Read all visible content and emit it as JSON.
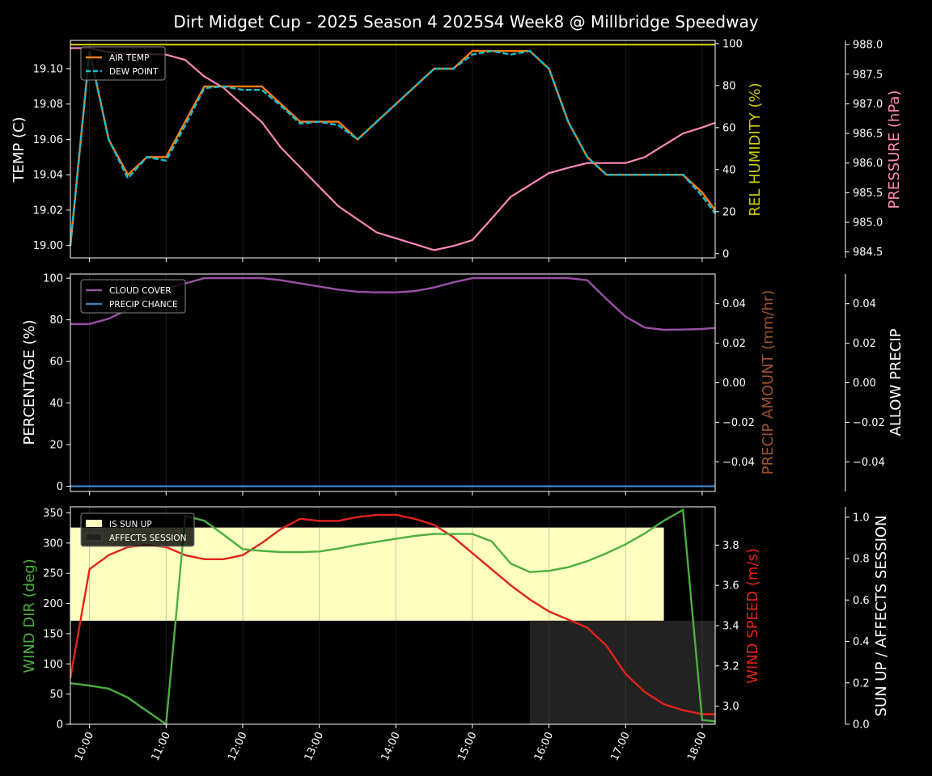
{
  "title": "Dirt Midget Cup - 2025 Season 4 2025S4 Week8 @ Millbridge Speedway",
  "colors": {
    "air_temp": "#ff7f0e",
    "dew_point": "#17becf",
    "humidity": "#cccc00",
    "pressure": "#ff88bb",
    "cloud": "#9b4fa8",
    "precip_chance": "#3a7fbf",
    "precip_amount": "#a0522d",
    "wind_dir": "#4caf3f",
    "wind_speed": "#e2231a",
    "sun_up": "#ffffc0",
    "affects": "#222222"
  },
  "chart_data": [
    {
      "type": "line",
      "name": "temperature-panel",
      "ylabel": "TEMP (C)",
      "y2label": "REL HUMIDITY (%)",
      "y3label": "PRESSURE (hPa)",
      "ylim": [
        18.993,
        19.116
      ],
      "y2lim": [
        -2,
        101.5
      ],
      "y3lim": [
        984.4,
        988.07
      ],
      "yticks": [
        "19.00",
        "19.02",
        "19.04",
        "19.06",
        "19.08",
        "19.10"
      ],
      "y2ticks": [
        "0",
        "20",
        "40",
        "60",
        "80",
        "100"
      ],
      "y3ticks": [
        "984.5",
        "985.0",
        "985.5",
        "986.0",
        "986.5",
        "987.0",
        "987.5",
        "988.0"
      ],
      "legend": [
        "AIR TEMP",
        "DEW POINT"
      ],
      "legend_position": "upper-left",
      "series": [
        {
          "name": "AIR TEMP",
          "axis": "y",
          "points": [
            [
              9.75,
              19.0
            ],
            [
              10.0,
              19.11
            ],
            [
              10.25,
              19.06
            ],
            [
              10.5,
              19.04
            ],
            [
              10.75,
              19.05
            ],
            [
              11.0,
              19.05
            ],
            [
              11.25,
              19.07
            ],
            [
              11.5,
              19.09
            ],
            [
              11.75,
              19.09
            ],
            [
              12.0,
              19.09
            ],
            [
              12.25,
              19.09
            ],
            [
              12.5,
              19.08
            ],
            [
              12.75,
              19.07
            ],
            [
              13.0,
              19.07
            ],
            [
              13.25,
              19.07
            ],
            [
              13.5,
              19.06
            ],
            [
              13.75,
              19.07
            ],
            [
              14.0,
              19.08
            ],
            [
              14.25,
              19.09
            ],
            [
              14.5,
              19.1
            ],
            [
              14.75,
              19.1
            ],
            [
              15.0,
              19.11
            ],
            [
              15.25,
              19.11
            ],
            [
              15.5,
              19.11
            ],
            [
              15.75,
              19.11
            ],
            [
              16.0,
              19.1
            ],
            [
              16.25,
              19.07
            ],
            [
              16.5,
              19.05
            ],
            [
              16.75,
              19.04
            ],
            [
              17.0,
              19.04
            ],
            [
              17.25,
              19.04
            ],
            [
              17.5,
              19.04
            ],
            [
              17.75,
              19.04
            ],
            [
              18.0,
              19.03
            ],
            [
              18.17,
              19.02
            ]
          ]
        },
        {
          "name": "DEW POINT",
          "axis": "y",
          "points": [
            [
              9.75,
              19.0
            ],
            [
              10.0,
              19.11
            ],
            [
              10.25,
              19.06
            ],
            [
              10.5,
              19.038
            ],
            [
              10.75,
              19.05
            ],
            [
              11.0,
              19.048
            ],
            [
              11.25,
              19.068
            ],
            [
              11.5,
              19.089
            ],
            [
              11.75,
              19.09
            ],
            [
              12.0,
              19.088
            ],
            [
              12.25,
              19.088
            ],
            [
              12.5,
              19.079
            ],
            [
              12.75,
              19.069
            ],
            [
              13.0,
              19.07
            ],
            [
              13.25,
              19.068
            ],
            [
              13.5,
              19.06
            ],
            [
              13.75,
              19.07
            ],
            [
              14.0,
              19.08
            ],
            [
              14.25,
              19.09
            ],
            [
              14.5,
              19.1
            ],
            [
              14.75,
              19.1
            ],
            [
              15.0,
              19.108
            ],
            [
              15.25,
              19.11
            ],
            [
              15.5,
              19.108
            ],
            [
              15.75,
              19.11
            ],
            [
              16.0,
              19.1
            ],
            [
              16.25,
              19.07
            ],
            [
              16.5,
              19.05
            ],
            [
              16.75,
              19.04
            ],
            [
              17.0,
              19.04
            ],
            [
              17.25,
              19.04
            ],
            [
              17.5,
              19.04
            ],
            [
              17.75,
              19.04
            ],
            [
              18.0,
              19.028
            ],
            [
              18.17,
              19.018
            ]
          ]
        },
        {
          "name": "REL HUMIDITY",
          "axis": "y2",
          "points": [
            [
              9.75,
              99.5
            ],
            [
              18.17,
              99.5
            ]
          ]
        },
        {
          "name": "PRESSURE",
          "axis": "y3",
          "points": [
            [
              9.75,
              987.94
            ],
            [
              10.0,
              987.94
            ],
            [
              10.25,
              987.87
            ],
            [
              10.5,
              987.84
            ],
            [
              10.75,
              987.84
            ],
            [
              11.0,
              987.83
            ],
            [
              11.25,
              987.74
            ],
            [
              11.5,
              987.46
            ],
            [
              11.75,
              987.27
            ],
            [
              12.0,
              986.98
            ],
            [
              12.25,
              986.69
            ],
            [
              12.5,
              986.26
            ],
            [
              12.75,
              985.93
            ],
            [
              13.0,
              985.6
            ],
            [
              13.25,
              985.27
            ],
            [
              13.5,
              985.05
            ],
            [
              13.75,
              984.83
            ],
            [
              14.0,
              984.73
            ],
            [
              14.25,
              984.63
            ],
            [
              14.5,
              984.53
            ],
            [
              14.75,
              984.6
            ],
            [
              15.0,
              984.7
            ],
            [
              15.25,
              985.06
            ],
            [
              15.5,
              985.43
            ],
            [
              15.75,
              985.63
            ],
            [
              16.0,
              985.83
            ],
            [
              16.25,
              985.92
            ],
            [
              16.5,
              986.0
            ],
            [
              16.75,
              986.0
            ],
            [
              17.0,
              986.0
            ],
            [
              17.25,
              986.1
            ],
            [
              17.5,
              986.3
            ],
            [
              17.75,
              986.5
            ],
            [
              18.0,
              986.6
            ],
            [
              18.17,
              986.68
            ]
          ]
        }
      ]
    },
    {
      "type": "line",
      "name": "precipitation-panel",
      "ylabel": "PERCENTAGE (%)",
      "y2label": "PRECIP AMOUNT (mm/hr)",
      "y3label": "ALLOW PRECIP",
      "ylim": [
        -2.5,
        102
      ],
      "y2lim": [
        -0.055,
        0.055
      ],
      "yticks": [
        "0",
        "20",
        "40",
        "60",
        "80",
        "100"
      ],
      "y2ticks": [
        "−0.04",
        "−0.02",
        "0.00",
        "0.02",
        "0.04"
      ],
      "y3ticks": [
        "−0.04",
        "−0.02",
        "0.00",
        "0.02",
        "0.04"
      ],
      "legend": [
        "CLOUD COVER",
        "PRECIP CHANCE"
      ],
      "legend_position": "upper-left",
      "series": [
        {
          "name": "CLOUD COVER",
          "points": [
            [
              9.75,
              78
            ],
            [
              10.0,
              78
            ],
            [
              10.25,
              80.5
            ],
            [
              10.5,
              85
            ],
            [
              10.75,
              91
            ],
            [
              11.0,
              95
            ],
            [
              11.25,
              97.5
            ],
            [
              11.5,
              100
            ],
            [
              11.75,
              100
            ],
            [
              12.0,
              100
            ],
            [
              12.25,
              100
            ],
            [
              12.5,
              99
            ],
            [
              12.75,
              97.5
            ],
            [
              13.0,
              96
            ],
            [
              13.25,
              94.5
            ],
            [
              13.5,
              93.5
            ],
            [
              13.75,
              93.2
            ],
            [
              14.0,
              93.2
            ],
            [
              14.25,
              93.8
            ],
            [
              14.5,
              95.5
            ],
            [
              14.75,
              98
            ],
            [
              15.0,
              100
            ],
            [
              15.25,
              100
            ],
            [
              15.5,
              100
            ],
            [
              15.75,
              100
            ],
            [
              16.0,
              100
            ],
            [
              16.25,
              100
            ],
            [
              16.5,
              99
            ],
            [
              16.75,
              90
            ],
            [
              17.0,
              81.5
            ],
            [
              17.25,
              76.3
            ],
            [
              17.5,
              75.2
            ],
            [
              17.75,
              75.3
            ],
            [
              18.0,
              75.6
            ],
            [
              18.17,
              76.1
            ]
          ]
        },
        {
          "name": "PRECIP CHANCE",
          "points": [
            [
              9.75,
              0
            ],
            [
              18.17,
              0
            ]
          ]
        }
      ]
    },
    {
      "type": "line",
      "name": "wind-panel",
      "ylabel": "WIND DIR (deg)",
      "y2label": "WIND SPEED (m/s)",
      "y3label": "SUN UP / AFFECTS SESSION",
      "ylim": [
        0,
        360
      ],
      "y2lim": [
        2.91,
        3.99
      ],
      "y3lim": [
        0,
        1.05
      ],
      "yticks": [
        "0",
        "50",
        "100",
        "150",
        "200",
        "250",
        "300",
        "350"
      ],
      "y2ticks": [
        "3.0",
        "3.2",
        "3.4",
        "3.6",
        "3.8"
      ],
      "y3ticks": [
        "0.0",
        "0.2",
        "0.4",
        "0.6",
        "0.8",
        "1.0"
      ],
      "legend": [
        "IS SUN UP",
        "AFFECTS SESSION"
      ],
      "legend_position": "upper-left",
      "xlabels": [
        "10:00",
        "11:00",
        "12:00",
        "13:00",
        "14:00",
        "15:00",
        "16:00",
        "17:00",
        "18:00"
      ],
      "xlim": [
        9.75,
        18.17
      ],
      "sun_up": {
        "from": 9.75,
        "to": 17.5,
        "value": 1
      },
      "affects_session": {
        "from": 15.75,
        "to": 18.17,
        "value": 0.5
      },
      "sun_level": 0.95,
      "series": [
        {
          "name": "WIND DIR",
          "axis": "y",
          "points": [
            [
              9.75,
              68
            ],
            [
              10.0,
              64
            ],
            [
              10.25,
              59
            ],
            [
              10.5,
              44
            ],
            [
              10.75,
              22
            ],
            [
              11.0,
              0
            ],
            [
              11.25,
              345
            ],
            [
              11.5,
              337
            ],
            [
              11.75,
              314
            ],
            [
              12.0,
              290
            ],
            [
              12.25,
              287
            ],
            [
              12.5,
              285
            ],
            [
              12.75,
              285
            ],
            [
              13.0,
              286
            ],
            [
              13.25,
              291
            ],
            [
              13.5,
              297
            ],
            [
              13.75,
              302
            ],
            [
              14.0,
              307
            ],
            [
              14.25,
              312
            ],
            [
              14.5,
              315
            ],
            [
              14.75,
              315
            ],
            [
              15.0,
              315
            ],
            [
              15.25,
              303
            ],
            [
              15.5,
              266
            ],
            [
              15.75,
              252
            ],
            [
              16.0,
              254
            ],
            [
              16.25,
              260
            ],
            [
              16.5,
              270
            ],
            [
              16.75,
              283
            ],
            [
              17.0,
              298
            ],
            [
              17.25,
              316
            ],
            [
              17.5,
              337
            ],
            [
              17.75,
              355
            ],
            [
              18.0,
              7
            ],
            [
              18.17,
              5
            ]
          ]
        },
        {
          "name": "WIND SPEED",
          "axis": "y2",
          "points": [
            [
              9.75,
              3.14
            ],
            [
              10.0,
              3.68
            ],
            [
              10.25,
              3.75
            ],
            [
              10.5,
              3.79
            ],
            [
              10.75,
              3.8
            ],
            [
              11.0,
              3.79
            ],
            [
              11.25,
              3.75
            ],
            [
              11.5,
              3.73
            ],
            [
              11.75,
              3.73
            ],
            [
              12.0,
              3.75
            ],
            [
              12.25,
              3.81
            ],
            [
              12.5,
              3.88
            ],
            [
              12.75,
              3.93
            ],
            [
              13.0,
              3.92
            ],
            [
              13.25,
              3.92
            ],
            [
              13.5,
              3.94
            ],
            [
              13.75,
              3.95
            ],
            [
              14.0,
              3.95
            ],
            [
              14.25,
              3.93
            ],
            [
              14.5,
              3.9
            ],
            [
              14.75,
              3.84
            ],
            [
              15.0,
              3.76
            ],
            [
              15.25,
              3.68
            ],
            [
              15.5,
              3.6
            ],
            [
              15.75,
              3.53
            ],
            [
              16.0,
              3.47
            ],
            [
              16.25,
              3.43
            ],
            [
              16.5,
              3.39
            ],
            [
              16.75,
              3.3
            ],
            [
              17.0,
              3.16
            ],
            [
              17.25,
              3.07
            ],
            [
              17.5,
              3.01
            ],
            [
              17.75,
              2.98
            ],
            [
              18.0,
              2.96
            ],
            [
              18.17,
              2.96
            ]
          ]
        }
      ]
    }
  ]
}
